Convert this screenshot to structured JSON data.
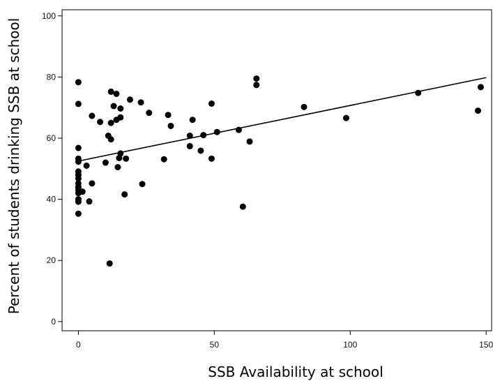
{
  "chart_data": {
    "type": "scatter",
    "title": "",
    "xlabel": "SSB Availability at school",
    "ylabel": "Percent of students drinking SSB at school",
    "xlim": [
      -6,
      152
    ],
    "ylim": [
      -3,
      102
    ],
    "xticks": [
      0,
      50,
      100,
      150
    ],
    "yticks": [
      0,
      20,
      40,
      60,
      80,
      100
    ],
    "grid": false,
    "point_color": "#000000",
    "points": [
      {
        "x": 0,
        "y": 78.3
      },
      {
        "x": 0,
        "y": 71.2
      },
      {
        "x": 0,
        "y": 56.8
      },
      {
        "x": 0,
        "y": 53.3
      },
      {
        "x": 0,
        "y": 52.3
      },
      {
        "x": 0,
        "y": 49.1
      },
      {
        "x": 0,
        "y": 48.0
      },
      {
        "x": 0,
        "y": 46.8
      },
      {
        "x": 0,
        "y": 45.2
      },
      {
        "x": 0,
        "y": 44.0
      },
      {
        "x": 0,
        "y": 43.0
      },
      {
        "x": 0,
        "y": 42.0
      },
      {
        "x": 0,
        "y": 40.0
      },
      {
        "x": 0,
        "y": 39.2
      },
      {
        "x": 0,
        "y": 35.3
      },
      {
        "x": 1.5,
        "y": 42.5
      },
      {
        "x": 3,
        "y": 51.0
      },
      {
        "x": 4,
        "y": 39.3
      },
      {
        "x": 5,
        "y": 45.2
      },
      {
        "x": 5,
        "y": 67.3
      },
      {
        "x": 8,
        "y": 65.3
      },
      {
        "x": 10,
        "y": 52.0
      },
      {
        "x": 11,
        "y": 60.8
      },
      {
        "x": 12,
        "y": 59.6
      },
      {
        "x": 12,
        "y": 75.2
      },
      {
        "x": 12,
        "y": 65.0
      },
      {
        "x": 11.5,
        "y": 19.0
      },
      {
        "x": 13,
        "y": 70.5
      },
      {
        "x": 14,
        "y": 74.5
      },
      {
        "x": 14,
        "y": 66.0
      },
      {
        "x": 14.5,
        "y": 50.5
      },
      {
        "x": 15,
        "y": 53.5
      },
      {
        "x": 15.5,
        "y": 66.8
      },
      {
        "x": 15.5,
        "y": 69.7
      },
      {
        "x": 15.5,
        "y": 55.0
      },
      {
        "x": 17,
        "y": 41.6
      },
      {
        "x": 17.5,
        "y": 53.3
      },
      {
        "x": 19,
        "y": 72.6
      },
      {
        "x": 23,
        "y": 71.7
      },
      {
        "x": 23.5,
        "y": 45.0
      },
      {
        "x": 26,
        "y": 68.3
      },
      {
        "x": 31.5,
        "y": 53.1
      },
      {
        "x": 33,
        "y": 67.6
      },
      {
        "x": 34,
        "y": 64.0
      },
      {
        "x": 41,
        "y": 60.8
      },
      {
        "x": 41,
        "y": 57.4
      },
      {
        "x": 42,
        "y": 66.0
      },
      {
        "x": 45,
        "y": 55.9
      },
      {
        "x": 46,
        "y": 61.0
      },
      {
        "x": 49,
        "y": 71.3
      },
      {
        "x": 49,
        "y": 53.3
      },
      {
        "x": 51,
        "y": 62.0
      },
      {
        "x": 59,
        "y": 62.7
      },
      {
        "x": 60.5,
        "y": 37.6
      },
      {
        "x": 63,
        "y": 58.9
      },
      {
        "x": 65.5,
        "y": 79.5
      },
      {
        "x": 65.5,
        "y": 77.4
      },
      {
        "x": 83,
        "y": 70.2
      },
      {
        "x": 98.5,
        "y": 66.6
      },
      {
        "x": 125,
        "y": 74.8
      },
      {
        "x": 147,
        "y": 69.0
      },
      {
        "x": 148,
        "y": 76.7
      }
    ],
    "trend_line": {
      "x": [
        0,
        150
      ],
      "y": [
        52.5,
        79.8
      ]
    }
  }
}
